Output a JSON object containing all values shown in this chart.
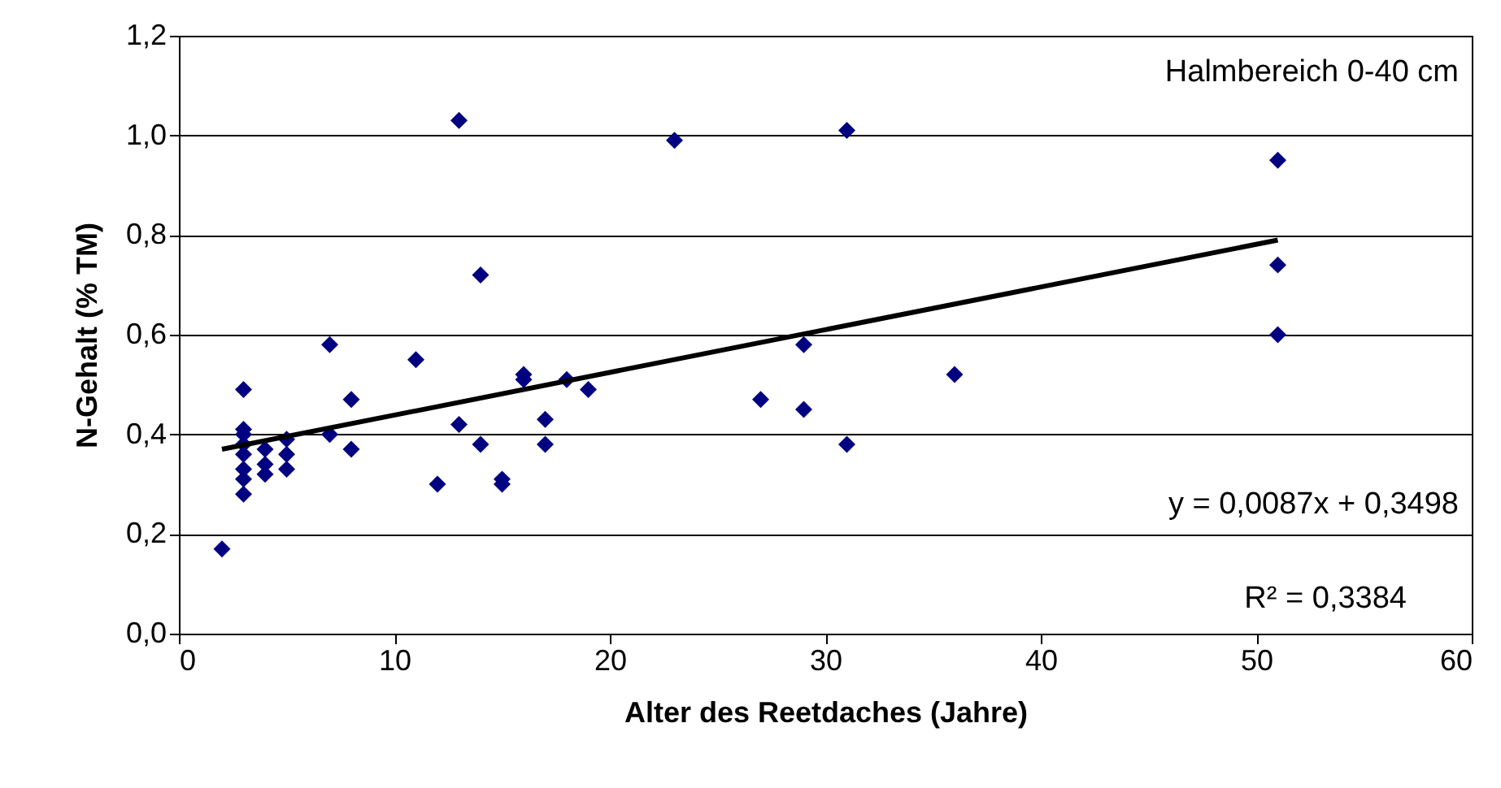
{
  "chart_data": {
    "type": "scatter",
    "xlabel": "Alter des Reetdaches (Jahre)",
    "ylabel": "N-Gehalt (% TM)",
    "annotations": [
      "Halmbereich 0-40 cm",
      "y = 0,0087x + 0,3498",
      "R² = 0,3384"
    ],
    "xlim": [
      0,
      60
    ],
    "xticks": [
      0,
      10,
      20,
      30,
      40,
      50,
      60
    ],
    "ylim": [
      0,
      1.2
    ],
    "yticks": [
      {
        "value": 0,
        "label": "0,0"
      },
      {
        "value": 0.2,
        "label": "0,2"
      },
      {
        "value": 0.4,
        "label": "0,4"
      },
      {
        "value": 0.6,
        "label": "0,6"
      },
      {
        "value": 0.8,
        "label": "0,8"
      },
      {
        "value": 1.0,
        "label": "1,0"
      },
      {
        "value": 1.2,
        "label": "1,2"
      }
    ],
    "grid": "y",
    "series": [
      {
        "color": "#000080",
        "marker": "diamond",
        "x": [
          2,
          3,
          3,
          3,
          3,
          3,
          3,
          3,
          3,
          4,
          4,
          4,
          5,
          5,
          5,
          7,
          7,
          8,
          8,
          11,
          12,
          13,
          13,
          14,
          14,
          15,
          15,
          16,
          16,
          17,
          17,
          18,
          19,
          23,
          27,
          29,
          29,
          31,
          31,
          36,
          51,
          51,
          51
        ],
        "values": [
          0.17,
          0.49,
          0.41,
          0.4,
          0.38,
          0.36,
          0.33,
          0.31,
          0.28,
          0.37,
          0.34,
          0.32,
          0.39,
          0.36,
          0.33,
          0.58,
          0.4,
          0.47,
          0.37,
          0.55,
          0.3,
          1.03,
          0.42,
          0.72,
          0.38,
          0.31,
          0.3,
          0.52,
          0.51,
          0.43,
          0.38,
          0.51,
          0.49,
          0.99,
          0.47,
          0.58,
          0.45,
          1.01,
          0.38,
          0.52,
          0.95,
          0.74,
          0.6
        ]
      },
      {
        "type": "line",
        "color": "#000000",
        "x": [
          2,
          51
        ],
        "values": [
          0.37,
          0.79
        ]
      }
    ]
  }
}
